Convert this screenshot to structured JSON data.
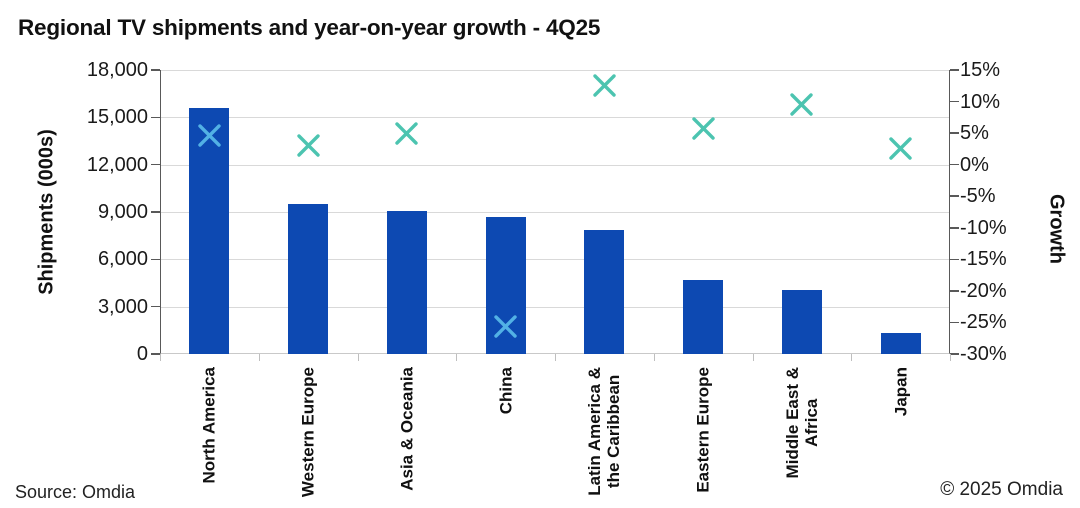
{
  "title": "Regional TV shipments and year-on-year growth - 4Q25",
  "footer": {
    "source": "Source: Omdia",
    "copyright": "© 2025 Omdia"
  },
  "colors": {
    "bar": "#0d49b2",
    "marker_teal": "#4cc4b0",
    "marker_light_blue": "#52b1e5",
    "gridline": "#d9d9d9",
    "axis_line": "#595959"
  },
  "chart_data": {
    "type": "combo bar + scatter (x markers), dual axis",
    "title": "Regional TV shipments and year-on-year growth - 4Q25",
    "categories": [
      "North America",
      "Western Europe",
      "Asia & Oceania",
      "China",
      "Latin America & the Caribbean",
      "Eastern Europe",
      "Middle East & Africa",
      "Japan"
    ],
    "category_label_lines": [
      [
        "North America"
      ],
      [
        "Western Europe"
      ],
      [
        "Asia & Oceania"
      ],
      [
        "China"
      ],
      [
        "Latin America &",
        "the Caribbean"
      ],
      [
        "Eastern Europe"
      ],
      [
        "Middle East &",
        "Africa"
      ],
      [
        "Japan"
      ]
    ],
    "series": [
      {
        "name": "Shipments (000s)",
        "type": "bar",
        "axis": "left",
        "values": [
          15600,
          9500,
          9050,
          8700,
          7850,
          4700,
          4050,
          1300
        ]
      },
      {
        "name": "Growth",
        "type": "scatter",
        "marker": "x",
        "axis": "right",
        "values": [
          4.7,
          3.1,
          4.9,
          -25.7,
          12.5,
          5.7,
          9.5,
          2.5
        ],
        "marker_colors": [
          "#52b1e5",
          "#4cc4b0",
          "#4cc4b0",
          "#52b1e5",
          "#4cc4b0",
          "#4cc4b0",
          "#4cc4b0",
          "#4cc4b0"
        ]
      }
    ],
    "left_axis": {
      "label": "Shipments (000s)",
      "min": 0,
      "max": 18000,
      "tick_step": 3000,
      "tick_labels": [
        "18,000",
        "15,000",
        "12,000",
        "9,000",
        "6,000",
        "3,000",
        "0"
      ]
    },
    "right_axis": {
      "label": "Growth",
      "min": -30,
      "max": 15,
      "tick_step": 5,
      "tick_labels": [
        "15%",
        "10%",
        "5%",
        "0%",
        "-5%",
        "-10%",
        "-15%",
        "-20%",
        "-25%",
        "-30%"
      ]
    },
    "grid": true,
    "legend": false
  }
}
